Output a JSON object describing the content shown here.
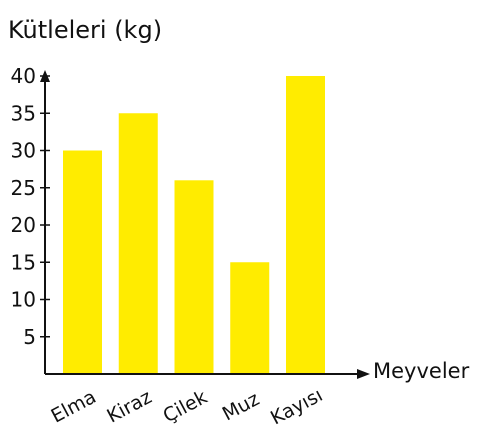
{
  "chart_data": {
    "type": "bar",
    "title": "",
    "ylabel": "Kütleleri (kg)",
    "xlabel": "Meyveler",
    "categories": [
      "Elma",
      "Kiraz",
      "Çilek",
      "Muz",
      "Kayısı"
    ],
    "values": [
      30,
      35,
      26,
      15,
      40
    ],
    "y_ticks": [
      "5",
      "10",
      "15",
      "20",
      "25",
      "30",
      "35",
      "40"
    ],
    "ylim": [
      0,
      43
    ],
    "grid": false,
    "bar_color": "#ffec00",
    "axis_color": "#111111"
  }
}
